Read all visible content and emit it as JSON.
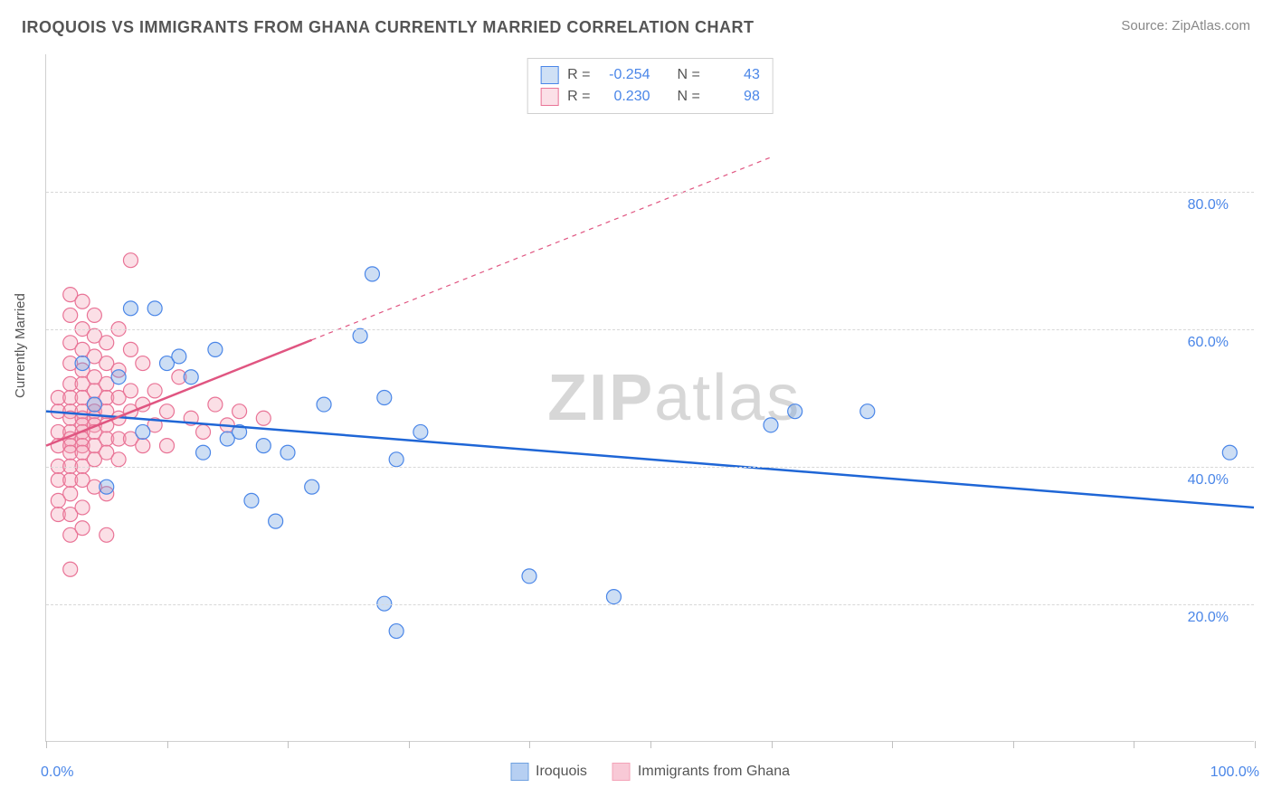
{
  "header": {
    "title": "IROQUOIS VS IMMIGRANTS FROM GHANA CURRENTLY MARRIED CORRELATION CHART",
    "source_prefix": "Source: ",
    "source_name": "ZipAtlas.com"
  },
  "ylabel": "Currently Married",
  "watermark": {
    "bold": "ZIP",
    "light": "atlas"
  },
  "chart": {
    "type": "scatter-with-regression",
    "background_color": "#ffffff",
    "grid_color": "#d8d8d8",
    "axis_color": "#d0d0d0",
    "tick_color": "#c0c0c0",
    "label_color": "#4a86e8",
    "text_color": "#555555",
    "xlim": [
      0,
      100
    ],
    "ylim": [
      0,
      100
    ],
    "xtick_positions": [
      0,
      10,
      20,
      30,
      40,
      50,
      60,
      70,
      80,
      90,
      100
    ],
    "y_gridlines": [
      20,
      40,
      60,
      80
    ],
    "ytick_labels": [
      "20.0%",
      "40.0%",
      "60.0%",
      "80.0%"
    ],
    "x_left_label": "0.0%",
    "x_right_label": "100.0%",
    "marker_radius": 8,
    "marker_fill_opacity": 0.35,
    "marker_stroke_width": 1.2,
    "line_width": 2.5,
    "dash_pattern": "5,5"
  },
  "series": [
    {
      "name": "Iroquois",
      "color": "#6fa1e0",
      "stroke": "#4a86e8",
      "line_color": "#1f66d6",
      "R": "-0.254",
      "N": "43",
      "regression": {
        "x1": 0,
        "y1": 48,
        "x2": 100,
        "y2": 34,
        "solid_until_x": 100
      },
      "points": [
        [
          3,
          55
        ],
        [
          4,
          49
        ],
        [
          5,
          37
        ],
        [
          6,
          53
        ],
        [
          7,
          63
        ],
        [
          8,
          45
        ],
        [
          9,
          63
        ],
        [
          10,
          55
        ],
        [
          11,
          56
        ],
        [
          12,
          53
        ],
        [
          13,
          42
        ],
        [
          14,
          57
        ],
        [
          15,
          44
        ],
        [
          16,
          45
        ],
        [
          18,
          43
        ],
        [
          17,
          35
        ],
        [
          19,
          32
        ],
        [
          20,
          42
        ],
        [
          22,
          37
        ],
        [
          23,
          49
        ],
        [
          26,
          59
        ],
        [
          27,
          68
        ],
        [
          28,
          50
        ],
        [
          28,
          20
        ],
        [
          29,
          41
        ],
        [
          29,
          16
        ],
        [
          31,
          45
        ],
        [
          40,
          24
        ],
        [
          47,
          21
        ],
        [
          60,
          46
        ],
        [
          62,
          48
        ],
        [
          68,
          48
        ],
        [
          98,
          42
        ]
      ]
    },
    {
      "name": "Immigrants from Ghana",
      "color": "#f4a3b8",
      "stroke": "#e97396",
      "line_color": "#e05581",
      "R": "0.230",
      "N": "98",
      "regression": {
        "x1": 0,
        "y1": 43,
        "x2": 60,
        "y2": 85,
        "solid_until_x": 22
      },
      "points": [
        [
          1,
          45
        ],
        [
          1,
          48
        ],
        [
          1,
          50
        ],
        [
          1,
          43
        ],
        [
          1,
          40
        ],
        [
          1,
          38
        ],
        [
          1,
          35
        ],
        [
          1,
          33
        ],
        [
          2,
          65
        ],
        [
          2,
          62
        ],
        [
          2,
          58
        ],
        [
          2,
          55
        ],
        [
          2,
          52
        ],
        [
          2,
          50
        ],
        [
          2,
          48
        ],
        [
          2,
          47
        ],
        [
          2,
          45
        ],
        [
          2,
          44
        ],
        [
          2,
          43
        ],
        [
          2,
          42
        ],
        [
          2,
          40
        ],
        [
          2,
          38
        ],
        [
          2,
          36
        ],
        [
          2,
          33
        ],
        [
          2,
          30
        ],
        [
          2,
          25
        ],
        [
          3,
          64
        ],
        [
          3,
          60
        ],
        [
          3,
          57
        ],
        [
          3,
          54
        ],
        [
          3,
          52
        ],
        [
          3,
          50
        ],
        [
          3,
          48
        ],
        [
          3,
          47
        ],
        [
          3,
          46
        ],
        [
          3,
          45
        ],
        [
          3,
          44
        ],
        [
          3,
          43
        ],
        [
          3,
          42
        ],
        [
          3,
          40
        ],
        [
          3,
          38
        ],
        [
          3,
          34
        ],
        [
          3,
          31
        ],
        [
          4,
          62
        ],
        [
          4,
          59
        ],
        [
          4,
          56
        ],
        [
          4,
          53
        ],
        [
          4,
          51
        ],
        [
          4,
          49
        ],
        [
          4,
          48
        ],
        [
          4,
          47
        ],
        [
          4,
          46
        ],
        [
          4,
          45
        ],
        [
          4,
          43
        ],
        [
          4,
          41
        ],
        [
          4,
          37
        ],
        [
          5,
          58
        ],
        [
          5,
          55
        ],
        [
          5,
          52
        ],
        [
          5,
          50
        ],
        [
          5,
          48
        ],
        [
          5,
          46
        ],
        [
          5,
          44
        ],
        [
          5,
          42
        ],
        [
          5,
          36
        ],
        [
          5,
          30
        ],
        [
          6,
          60
        ],
        [
          6,
          54
        ],
        [
          6,
          50
        ],
        [
          6,
          47
        ],
        [
          6,
          44
        ],
        [
          6,
          41
        ],
        [
          7,
          70
        ],
        [
          7,
          57
        ],
        [
          7,
          51
        ],
        [
          7,
          48
        ],
        [
          7,
          44
        ],
        [
          8,
          55
        ],
        [
          8,
          49
        ],
        [
          8,
          43
        ],
        [
          9,
          51
        ],
        [
          9,
          46
        ],
        [
          10,
          48
        ],
        [
          10,
          43
        ],
        [
          11,
          53
        ],
        [
          12,
          47
        ],
        [
          13,
          45
        ],
        [
          14,
          49
        ],
        [
          15,
          46
        ],
        [
          16,
          48
        ],
        [
          18,
          47
        ]
      ]
    }
  ],
  "legend_top": {
    "R_label": "R =",
    "N_label": "N ="
  },
  "legend_bottom": [
    {
      "label": "Iroquois",
      "fill": "#b6cff2",
      "stroke": "#6fa1e0"
    },
    {
      "label": "Immigrants from Ghana",
      "fill": "#f8c9d6",
      "stroke": "#f4a3b8"
    }
  ]
}
